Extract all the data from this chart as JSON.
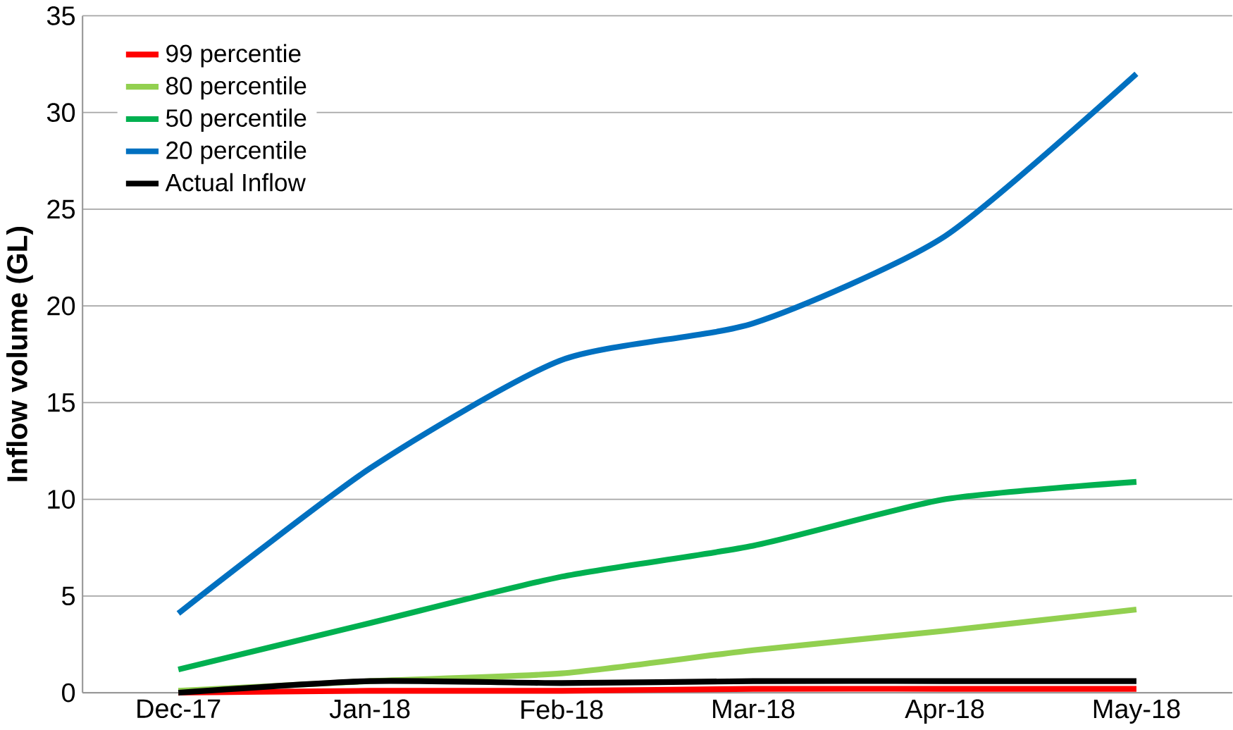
{
  "chart_data": {
    "type": "line",
    "ylabel": "Inflow volume (GL)",
    "categories": [
      "Dec-17",
      "Jan-18",
      "Feb-18",
      "Mar-18",
      "Apr-18",
      "May-18"
    ],
    "series": [
      {
        "name": "99 percentie",
        "color": "#ff0000",
        "values": [
          0,
          0.1,
          0.1,
          0.2,
          0.2,
          0.2
        ]
      },
      {
        "name": "80 percentile",
        "color": "#92d050",
        "values": [
          0.1,
          0.6,
          1.0,
          2.2,
          3.2,
          4.3
        ]
      },
      {
        "name": "50 percentile",
        "color": "#00b050",
        "values": [
          1.2,
          3.6,
          6.0,
          7.6,
          10.0,
          10.9
        ]
      },
      {
        "name": "20 percentile",
        "color": "#0070c0",
        "values": [
          4.1,
          11.6,
          17.2,
          19.1,
          23.6,
          32.0
        ]
      },
      {
        "name": "Actual Inflow",
        "color": "#000000",
        "values": [
          0,
          0.6,
          0.5,
          0.6,
          0.6,
          0.6
        ]
      }
    ],
    "ylim": [
      0,
      35
    ],
    "yticks": [
      0,
      5,
      10,
      15,
      20,
      25,
      30,
      35
    ],
    "grid": "y",
    "legend": "top left",
    "marker": "none",
    "line_style": "solid"
  }
}
